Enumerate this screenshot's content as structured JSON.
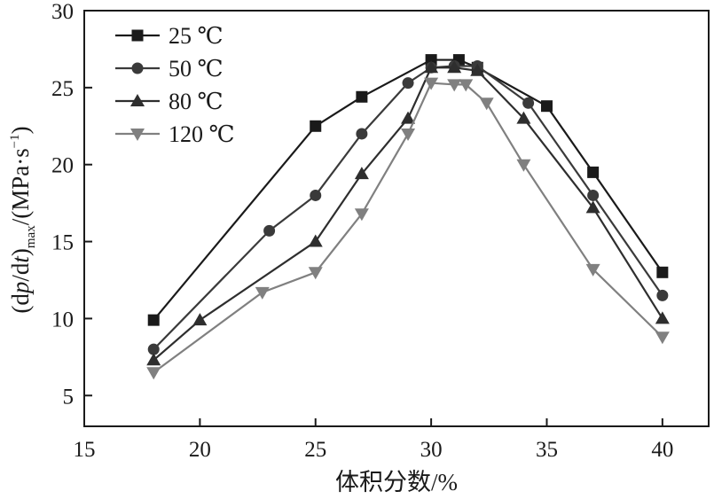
{
  "chart_data": {
    "type": "line",
    "xlabel": "体积分数/%",
    "ylabel_parts": {
      "open": "(d",
      "p": "p",
      "slash": "/d",
      "t": "t",
      "close": ")",
      "sub": "max",
      "unit": "/(MPa·s",
      "sup": "−1",
      "end": ")"
    },
    "xlim": [
      15,
      42
    ],
    "ylim": [
      3,
      30
    ],
    "xticks": [
      15,
      20,
      25,
      30,
      35,
      40
    ],
    "yticks": [
      5,
      10,
      15,
      20,
      25,
      30
    ],
    "legend_position": "top-left",
    "series": [
      {
        "name": "25 ℃",
        "marker": "square",
        "color": "#1a1a1a",
        "points": [
          [
            18,
            9.9
          ],
          [
            25,
            22.5
          ],
          [
            27,
            24.4
          ],
          [
            30,
            26.8
          ],
          [
            31.2,
            26.8
          ],
          [
            32,
            26.3
          ],
          [
            35,
            23.8
          ],
          [
            37,
            19.5
          ],
          [
            40,
            13.0
          ]
        ]
      },
      {
        "name": "50 ℃",
        "marker": "circle",
        "color": "#3a3a3a",
        "points": [
          [
            18,
            8.0
          ],
          [
            23,
            15.7
          ],
          [
            25,
            18.0
          ],
          [
            27,
            22.0
          ],
          [
            29,
            25.3
          ],
          [
            30,
            26.3
          ],
          [
            31,
            26.4
          ],
          [
            32,
            26.4
          ],
          [
            34.2,
            24.0
          ],
          [
            37,
            18.0
          ],
          [
            40,
            11.5
          ]
        ]
      },
      {
        "name": "80 ℃",
        "marker": "triangle-up",
        "color": "#2e2e2e",
        "points": [
          [
            18,
            7.3
          ],
          [
            20,
            9.9
          ],
          [
            25,
            15.0
          ],
          [
            27,
            19.4
          ],
          [
            29,
            23.0
          ],
          [
            30,
            26.3
          ],
          [
            31,
            26.3
          ],
          [
            32,
            26.1
          ],
          [
            34,
            23.0
          ],
          [
            37,
            17.2
          ],
          [
            40,
            10.0
          ]
        ]
      },
      {
        "name": "120 ℃",
        "marker": "triangle-down",
        "color": "#808080",
        "points": [
          [
            18,
            6.5
          ],
          [
            22.7,
            11.7
          ],
          [
            25,
            13.0
          ],
          [
            27,
            16.8
          ],
          [
            29,
            22.0
          ],
          [
            30,
            25.3
          ],
          [
            31,
            25.2
          ],
          [
            31.5,
            25.2
          ],
          [
            32.4,
            24.0
          ],
          [
            34,
            20.0
          ],
          [
            37,
            13.2
          ],
          [
            40,
            8.8
          ]
        ]
      }
    ]
  }
}
